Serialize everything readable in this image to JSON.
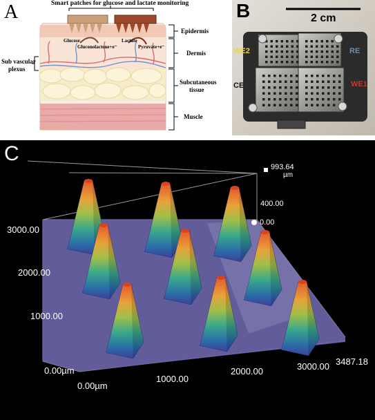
{
  "panel_a": {
    "label": "A",
    "title": "Smart patches for glucose and lactate monitoring",
    "layers": {
      "epidermis": "Epidermis",
      "dermis": "Dermis",
      "subcutaneous_1": "Subcutaneous",
      "subcutaneous_2": "tissue",
      "muscle": "Muscle"
    },
    "plexus_1": "Sub vascular",
    "plexus_2": "plexus",
    "glucose": "Glucose",
    "gluconolactone": "Gluconolactone+e⁻",
    "lactate": "Lactate",
    "pyruvate": "Pyruvate+e⁻",
    "colors": {
      "glucose_patch": "#c9a07a",
      "lactate_patch": "#9c4a2e",
      "skin_top": "#f4dccd",
      "fat": "#f6ecc8",
      "muscle": "#e9a9a6"
    }
  },
  "panel_b": {
    "label": "B",
    "scale": "2 cm",
    "electrodes": {
      "we2": "WE2",
      "re": "RE",
      "ce": "CE",
      "we1": "WE1"
    },
    "colors": {
      "we2": "#e8d84a",
      "re": "#6f8fa6",
      "ce": "#111111",
      "we1": "#c0392b"
    }
  },
  "panel_c": {
    "label": "C",
    "z_max": "993.64",
    "z_unit": "µm",
    "z_mid": "400.00",
    "z_zero": "0.00",
    "y_ticks": [
      "3000.00",
      "2000.00",
      "1000.00",
      "0.00µm"
    ],
    "x_ticks": [
      "0.00µm",
      "1000.00",
      "2000.00",
      "3000.00",
      "3487.18"
    ]
  }
}
